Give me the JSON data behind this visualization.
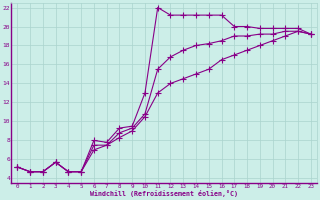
{
  "xlabel": "Windchill (Refroidissement éolien,°C)",
  "bg_color": "#cceee8",
  "grid_color": "#aad4ce",
  "line_color": "#880088",
  "marker": "+",
  "markersize": 4,
  "linewidth": 0.8,
  "xlim": [
    -0.5,
    23.5
  ],
  "ylim": [
    3.5,
    22.5
  ],
  "xticks": [
    0,
    1,
    2,
    3,
    4,
    5,
    6,
    7,
    8,
    9,
    10,
    11,
    12,
    13,
    14,
    15,
    16,
    17,
    18,
    19,
    20,
    21,
    22,
    23
  ],
  "yticks": [
    4,
    6,
    8,
    10,
    12,
    14,
    16,
    18,
    20,
    22
  ],
  "series": [
    {
      "x": [
        0,
        1,
        2,
        3,
        4,
        5,
        6,
        7,
        8,
        9,
        10,
        11,
        12,
        13,
        14,
        15,
        16,
        17,
        18,
        19,
        20,
        21,
        22,
        23
      ],
      "y": [
        5.2,
        4.7,
        4.7,
        5.7,
        4.7,
        4.7,
        8.0,
        7.8,
        9.3,
        9.5,
        13.0,
        22.0,
        21.2,
        21.2,
        21.2,
        21.2,
        21.2,
        20.0,
        20.0,
        19.8,
        19.8,
        19.8,
        19.8,
        19.2
      ]
    },
    {
      "x": [
        0,
        1,
        2,
        3,
        4,
        5,
        6,
        7,
        8,
        9,
        10,
        11,
        12,
        13,
        14,
        15,
        16,
        17,
        18,
        19,
        20,
        21,
        22,
        23
      ],
      "y": [
        5.2,
        4.7,
        4.7,
        5.7,
        4.7,
        4.7,
        7.5,
        7.5,
        8.8,
        9.3,
        10.8,
        15.5,
        16.8,
        17.5,
        18.0,
        18.2,
        18.5,
        19.0,
        19.0,
        19.2,
        19.2,
        19.5,
        19.5,
        19.2
      ]
    },
    {
      "x": [
        0,
        1,
        2,
        3,
        4,
        5,
        6,
        7,
        8,
        9,
        10,
        11,
        12,
        13,
        14,
        15,
        16,
        17,
        18,
        19,
        20,
        21,
        22,
        23
      ],
      "y": [
        5.2,
        4.7,
        4.7,
        5.7,
        4.7,
        4.7,
        7.0,
        7.5,
        8.3,
        9.0,
        10.5,
        13.0,
        14.0,
        14.5,
        15.0,
        15.5,
        16.5,
        17.0,
        17.5,
        18.0,
        18.5,
        19.0,
        19.5,
        19.2
      ]
    }
  ]
}
